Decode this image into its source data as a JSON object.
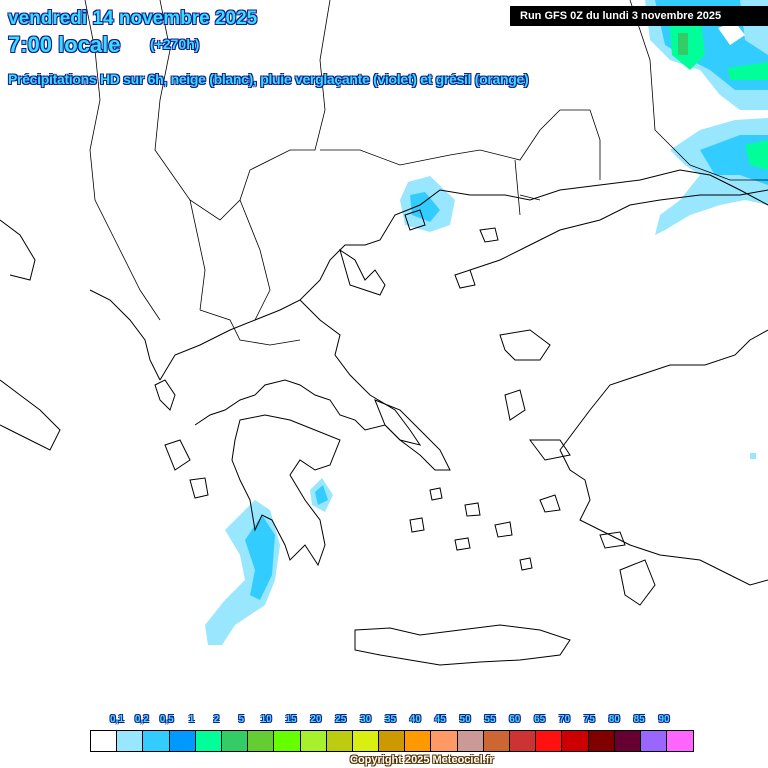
{
  "header": {
    "date": "vendredi 14 novembre 2025",
    "time": "7:00 locale",
    "lead": "(+270h)",
    "subtitle": "Précipitations HD sur 6h, neige (blanc), pluie verglaçante (violet) et grésil (orange)",
    "run": "Run GFS 0Z du lundi 3 novembre 2025"
  },
  "legend": {
    "labels": [
      "0,1",
      "0,2",
      "0,5",
      "1",
      "2",
      "5",
      "10",
      "15",
      "20",
      "25",
      "30",
      "35",
      "40",
      "45",
      "50",
      "55",
      "60",
      "65",
      "70",
      "75",
      "80",
      "85",
      "90"
    ],
    "colors": [
      "#ffffff",
      "#99e6ff",
      "#33ccff",
      "#0099ff",
      "#00ff99",
      "#33cc66",
      "#66cc33",
      "#66ff00",
      "#a6f02e",
      "#bbcc11",
      "#d9ee11",
      "#cc9900",
      "#ff9900",
      "#ff9966",
      "#cc9999",
      "#cc6633",
      "#cc3333",
      "#ff1111",
      "#cc0000",
      "#800000",
      "#660033",
      "#9966ff",
      "#ff66ff"
    ]
  },
  "copyright": "Copyright 2025 Meteociel.fr"
}
